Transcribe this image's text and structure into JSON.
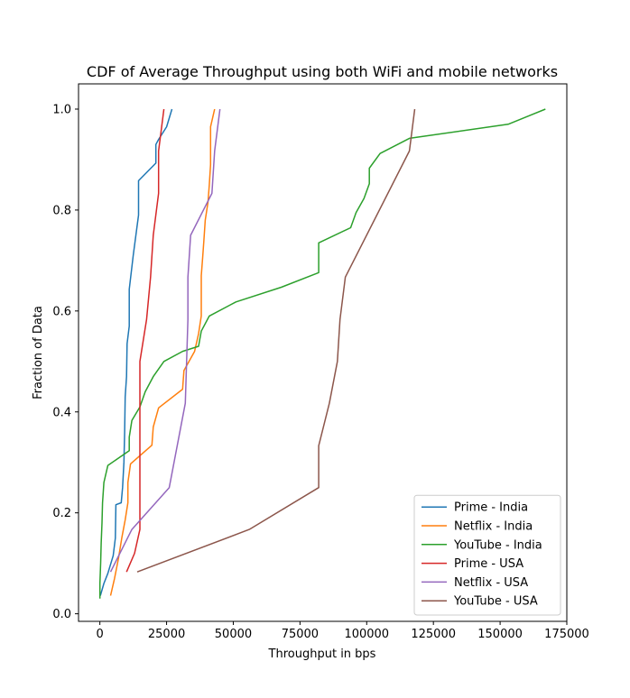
{
  "chart_data": {
    "type": "line",
    "title": "CDF of Average Throughput using both WiFi and mobile networks",
    "xlabel": "Throughput in bps",
    "ylabel": "Fraction of Data",
    "xlim": [
      -8000,
      175000
    ],
    "ylim": [
      -0.015,
      1.05
    ],
    "xticks": [
      0,
      25000,
      50000,
      75000,
      100000,
      125000,
      150000,
      175000
    ],
    "xtick_labels": [
      "0",
      "25000",
      "50000",
      "75000",
      "100000",
      "125000",
      "150000",
      "175000"
    ],
    "yticks": [
      0.0,
      0.2,
      0.4,
      0.6,
      0.8,
      1.0
    ],
    "ytick_labels": [
      "0.0",
      "0.2",
      "0.4",
      "0.6",
      "0.8",
      "1.0"
    ],
    "grid": false,
    "legend_position": "lower-right",
    "series": [
      {
        "name": "Prime - India",
        "color": "#1f77b4",
        "points": [
          [
            200,
            0.036
          ],
          [
            1500,
            0.06
          ],
          [
            3000,
            0.08
          ],
          [
            5000,
            0.115
          ],
          [
            5800,
            0.15
          ],
          [
            6000,
            0.216
          ],
          [
            8000,
            0.22
          ],
          [
            8500,
            0.25
          ],
          [
            9000,
            0.3
          ],
          [
            9300,
            0.36
          ],
          [
            9500,
            0.43
          ],
          [
            10000,
            0.47
          ],
          [
            10200,
            0.535
          ],
          [
            11000,
            0.57
          ],
          [
            11000,
            0.643
          ],
          [
            12500,
            0.71
          ],
          [
            14500,
            0.79
          ],
          [
            14500,
            0.858
          ],
          [
            21000,
            0.893
          ],
          [
            21000,
            0.93
          ],
          [
            22000,
            0.94
          ],
          [
            25000,
            0.965
          ],
          [
            27000,
            1.0
          ]
        ]
      },
      {
        "name": "Netflix - India",
        "color": "#ff7f0e",
        "points": [
          [
            4000,
            0.036
          ],
          [
            5500,
            0.07
          ],
          [
            7000,
            0.11
          ],
          [
            8200,
            0.15
          ],
          [
            9500,
            0.186
          ],
          [
            10500,
            0.22
          ],
          [
            10500,
            0.26
          ],
          [
            11500,
            0.297
          ],
          [
            19500,
            0.334
          ],
          [
            20000,
            0.37
          ],
          [
            22000,
            0.408
          ],
          [
            31000,
            0.445
          ],
          [
            31500,
            0.482
          ],
          [
            35500,
            0.52
          ],
          [
            37000,
            0.555
          ],
          [
            38000,
            0.59
          ],
          [
            38000,
            0.63
          ],
          [
            38000,
            0.67
          ],
          [
            38500,
            0.705
          ],
          [
            39000,
            0.74
          ],
          [
            39500,
            0.78
          ],
          [
            40500,
            0.815
          ],
          [
            41000,
            0.85
          ],
          [
            41500,
            0.89
          ],
          [
            41500,
            0.93
          ],
          [
            41500,
            0.965
          ],
          [
            43000,
            1.0
          ]
        ]
      },
      {
        "name": "YouTube - India",
        "color": "#2ca02c",
        "points": [
          [
            0,
            0.03
          ],
          [
            0,
            0.06
          ],
          [
            300,
            0.1
          ],
          [
            500,
            0.14
          ],
          [
            800,
            0.18
          ],
          [
            1000,
            0.22
          ],
          [
            1500,
            0.26
          ],
          [
            3000,
            0.294
          ],
          [
            11000,
            0.323
          ],
          [
            11000,
            0.35
          ],
          [
            12000,
            0.383
          ],
          [
            15000,
            0.41
          ],
          [
            17000,
            0.44
          ],
          [
            20000,
            0.47
          ],
          [
            24000,
            0.5
          ],
          [
            31000,
            0.52
          ],
          [
            37000,
            0.53
          ],
          [
            38000,
            0.56
          ],
          [
            41000,
            0.59
          ],
          [
            51000,
            0.618
          ],
          [
            68000,
            0.647
          ],
          [
            82000,
            0.676
          ],
          [
            82000,
            0.706
          ],
          [
            82000,
            0.735
          ],
          [
            94000,
            0.765
          ],
          [
            96000,
            0.795
          ],
          [
            99000,
            0.823
          ],
          [
            101000,
            0.852
          ],
          [
            101000,
            0.883
          ],
          [
            105000,
            0.912
          ],
          [
            116000,
            0.942
          ],
          [
            153000,
            0.97
          ],
          [
            167000,
            1.0
          ]
        ]
      },
      {
        "name": "Prime - USA",
        "color": "#d62728",
        "points": [
          [
            10000,
            0.083
          ],
          [
            13000,
            0.12
          ],
          [
            15000,
            0.167
          ],
          [
            15000,
            0.25
          ],
          [
            15000,
            0.333
          ],
          [
            15000,
            0.417
          ],
          [
            15000,
            0.5
          ],
          [
            17500,
            0.583
          ],
          [
            19000,
            0.667
          ],
          [
            20000,
            0.75
          ],
          [
            22000,
            0.833
          ],
          [
            22000,
            0.917
          ],
          [
            24000,
            1.0
          ]
        ]
      },
      {
        "name": "Netflix - USA",
        "color": "#9467bd",
        "points": [
          [
            4000,
            0.083
          ],
          [
            12000,
            0.167
          ],
          [
            26000,
            0.25
          ],
          [
            32000,
            0.417
          ],
          [
            33000,
            0.583
          ],
          [
            33000,
            0.667
          ],
          [
            34000,
            0.75
          ],
          [
            42000,
            0.833
          ],
          [
            43000,
            0.917
          ],
          [
            45000,
            1.0
          ]
        ]
      },
      {
        "name": "YouTube - USA",
        "color": "#8c564b",
        "points": [
          [
            14000,
            0.083
          ],
          [
            56000,
            0.167
          ],
          [
            82000,
            0.25
          ],
          [
            82000,
            0.333
          ],
          [
            86000,
            0.417
          ],
          [
            89000,
            0.5
          ],
          [
            90000,
            0.583
          ],
          [
            92000,
            0.667
          ],
          [
            116000,
            0.917
          ],
          [
            118000,
            1.0
          ]
        ]
      }
    ]
  }
}
